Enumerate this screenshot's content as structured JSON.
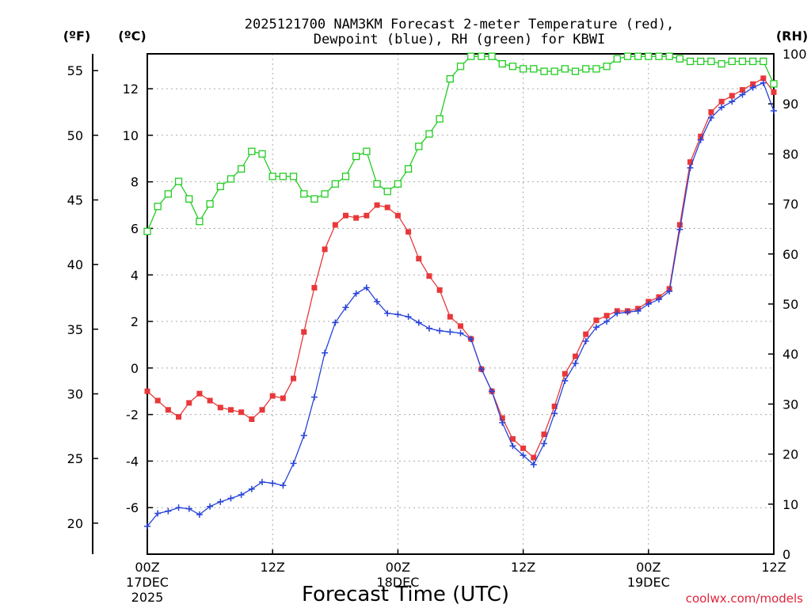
{
  "chart_data": {
    "type": "line",
    "title_line1": "2025121700 NAM3KM Forecast 2-meter Temperature (red),",
    "title_line2": "Dewpoint (blue), RH (green) for KBWI",
    "xlabel": "Forecast Time (UTC)",
    "watermark": "coolwx.com/models",
    "axis_units": {
      "fahrenheit": "(ºF)",
      "celsius": "(ºC)",
      "rh": "(RH)"
    },
    "xlim": [
      0,
      60
    ],
    "ylim_celsius": [
      -8,
      13.5
    ],
    "ylim_fahrenheit": [
      17.6,
      56.3
    ],
    "ylim_rh": [
      0,
      100
    ],
    "x_ticks": [
      {
        "x": 0,
        "line1": "00Z",
        "line2": "17DEC",
        "line3": "2025"
      },
      {
        "x": 12,
        "line1": "12Z",
        "line2": "",
        "line3": ""
      },
      {
        "x": 24,
        "line1": "00Z",
        "line2": "18DEC",
        "line3": ""
      },
      {
        "x": 36,
        "line1": "12Z",
        "line2": "",
        "line3": ""
      },
      {
        "x": 48,
        "line1": "00Z",
        "line2": "19DEC",
        "line3": ""
      },
      {
        "x": 60,
        "line1": "12Z",
        "line2": "",
        "line3": ""
      }
    ],
    "celsius_ticks": [
      -6,
      -4,
      -2,
      0,
      2,
      4,
      6,
      8,
      10,
      12
    ],
    "fahrenheit_ticks": [
      20,
      25,
      30,
      35,
      40,
      45,
      50,
      55
    ],
    "rh_ticks": [
      0,
      10,
      20,
      30,
      40,
      50,
      60,
      70,
      80,
      90,
      100
    ],
    "x": [
      0,
      1,
      2,
      3,
      4,
      5,
      6,
      7,
      8,
      9,
      10,
      11,
      12,
      13,
      14,
      15,
      16,
      17,
      18,
      19,
      20,
      21,
      22,
      23,
      24,
      25,
      26,
      27,
      28,
      29,
      30,
      31,
      32,
      33,
      34,
      35,
      36,
      37,
      38,
      39,
      40,
      41,
      42,
      43,
      44,
      45,
      46,
      47,
      48,
      49,
      50,
      51,
      52,
      53,
      54,
      55,
      56,
      57,
      58,
      59,
      60
    ],
    "series": [
      {
        "name": "Temperature",
        "unit": "C",
        "color": "#e8383a",
        "marker": "square",
        "values": [
          -1,
          -1.4,
          -1.8,
          -2.1,
          -1.5,
          -1.1,
          -1.4,
          -1.7,
          -1.8,
          -1.9,
          -2.2,
          -1.8,
          -1.2,
          -1.3,
          -0.45,
          1.55,
          3.45,
          5.1,
          6.15,
          6.55,
          6.45,
          6.55,
          7,
          6.9,
          6.55,
          5.85,
          4.7,
          3.95,
          3.35,
          2.2,
          1.8,
          1.25,
          -0.05,
          -1,
          -2.15,
          -3.05,
          -3.45,
          -3.85,
          -2.85,
          -1.65,
          -0.25,
          0.5,
          1.45,
          2.05,
          2.25,
          2.45,
          2.45,
          2.55,
          2.85,
          3.05,
          3.4,
          6.15,
          8.85,
          9.95,
          11,
          11.45,
          11.7,
          11.95,
          12.2,
          12.45,
          11.85
        ]
      },
      {
        "name": "Dewpoint",
        "unit": "C",
        "color": "#2743d8",
        "marker": "plus",
        "values": [
          -6.8,
          -6.25,
          -6.15,
          -6.0,
          -6.05,
          -6.3,
          -5.95,
          -5.75,
          -5.6,
          -5.45,
          -5.2,
          -4.9,
          -4.95,
          -5.05,
          -4.1,
          -2.9,
          -1.25,
          0.65,
          1.95,
          2.6,
          3.2,
          3.45,
          2.85,
          2.35,
          2.3,
          2.2,
          1.95,
          1.7,
          1.6,
          1.55,
          1.5,
          1.25,
          -0.05,
          -1.0,
          -2.35,
          -3.35,
          -3.75,
          -4.15,
          -3.25,
          -1.95,
          -0.55,
          0.2,
          1.15,
          1.75,
          2.0,
          2.35,
          2.4,
          2.45,
          2.75,
          2.95,
          3.3,
          5.95,
          8.6,
          9.8,
          10.75,
          11.2,
          11.45,
          11.75,
          12.05,
          12.25,
          11.05
        ]
      },
      {
        "name": "Relative Humidity",
        "unit": "%",
        "color": "#22cc22",
        "marker": "open-square",
        "values": [
          64.5,
          69.5,
          72,
          74.5,
          71,
          66.5,
          70,
          73.5,
          75,
          77,
          80.5,
          80,
          75.5,
          75.5,
          75.5,
          72,
          71,
          72,
          74,
          75.5,
          79.5,
          80.5,
          74,
          72.5,
          74,
          77,
          81.5,
          84,
          87,
          95,
          97.5,
          99.5,
          99.5,
          99.5,
          98,
          97.5,
          97,
          97,
          96.5,
          96.5,
          97,
          96.5,
          97,
          97,
          97.5,
          99,
          99.5,
          99.5,
          99.5,
          99.5,
          99.5,
          99,
          98.5,
          98.5,
          98.5,
          98,
          98.5,
          98.5,
          98.5,
          98.5,
          94
        ]
      }
    ]
  }
}
